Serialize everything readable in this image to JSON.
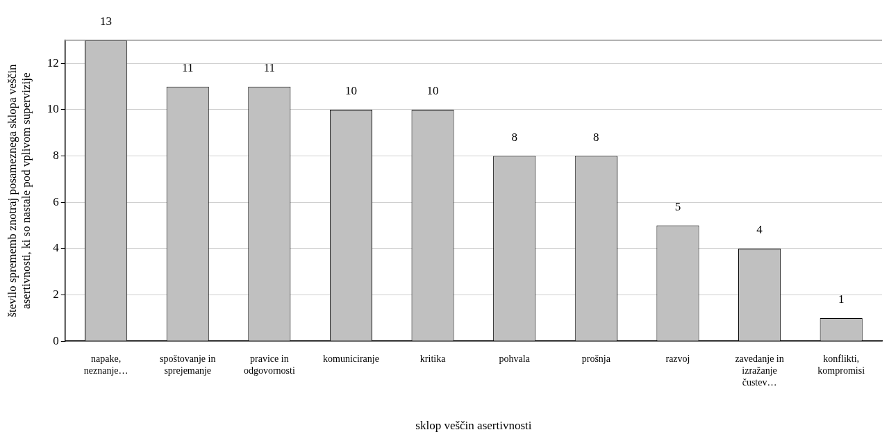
{
  "chart_data": {
    "type": "bar",
    "xlabel": "sklop veščin asertivnosti",
    "ylabel": "število sprememb znotraj posameznega sklopa veščin asertivnosti, ki so nastale pod vplivom supervizije",
    "categories": [
      "napake, neznanje…",
      "spoštovanje in sprejemanje",
      "pravice in odgovornosti",
      "komuniciranje",
      "kritika",
      "pohvala",
      "prošnja",
      "razvoj",
      "zavedanje in izražanje čustev…",
      "konflikti, kompromisi"
    ],
    "values": [
      13,
      11,
      11,
      10,
      10,
      8,
      8,
      5,
      4,
      1
    ],
    "color": "#c0c0c0",
    "ylim": [
      0,
      13
    ],
    "yticks": [
      0,
      2,
      4,
      6,
      8,
      10,
      12
    ],
    "grid": "y",
    "data_labels": true,
    "legend": false
  }
}
